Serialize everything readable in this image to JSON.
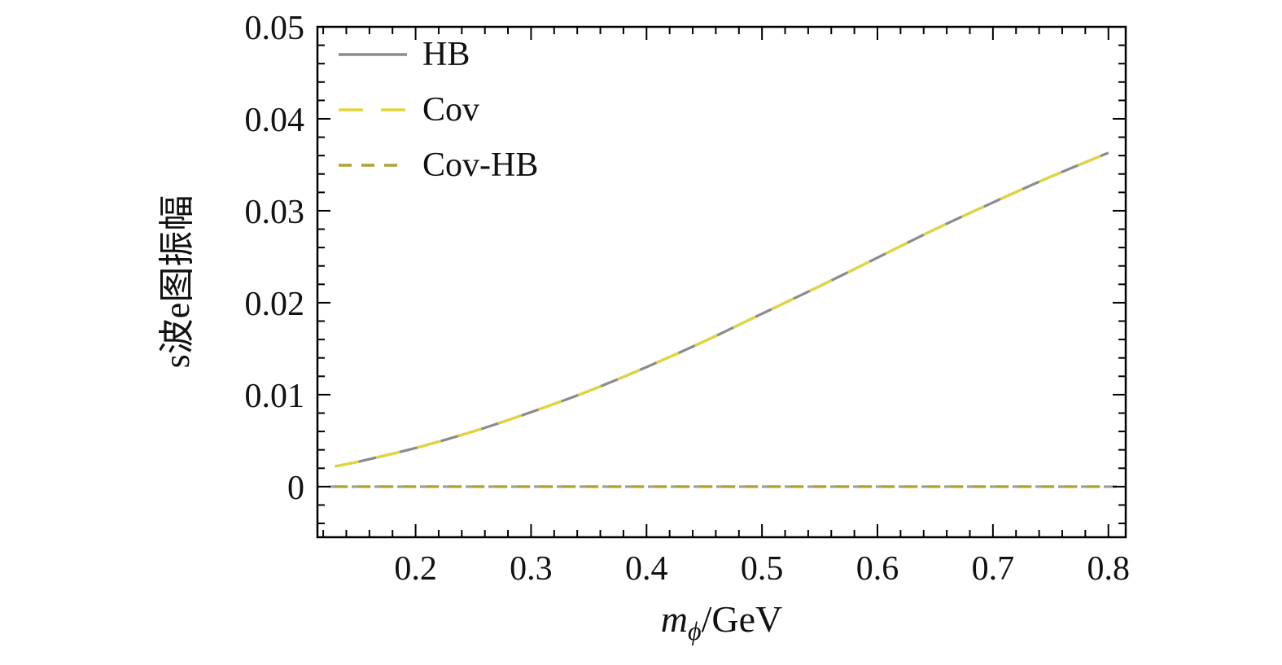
{
  "figure": {
    "background": "#ffffff",
    "frame_color": "#000000"
  },
  "labels": {
    "xlabel_var": "m",
    "xlabel_sub": "ϕ",
    "xlabel_unit": "/GeV",
    "ylabel": "s波e图振幅"
  },
  "legend": {
    "position": "top-left-inside",
    "items": [
      "HB",
      "Cov",
      "Cov-HB"
    ]
  },
  "chart_data": {
    "type": "line",
    "title": "",
    "xlabel": "m_ϕ/GeV",
    "ylabel": "s波e图振幅",
    "xlim": [
      0.115,
      0.815
    ],
    "ylim": [
      -0.0055,
      0.05
    ],
    "xticks": [
      0.2,
      0.3,
      0.4,
      0.5,
      0.6,
      0.7,
      0.8
    ],
    "xtick_labels": [
      "0.2",
      "0.3",
      "0.4",
      "0.5",
      "0.6",
      "0.7",
      "0.8"
    ],
    "yticks": [
      0,
      0.01,
      0.02,
      0.03,
      0.04,
      0.05
    ],
    "ytick_labels": [
      "0",
      "0.01",
      "0.02",
      "0.03",
      "0.04",
      "0.05"
    ],
    "x_minor_step": 0.02,
    "y_minor_step": 0.002,
    "grid": false,
    "legend_position": "top-left-inside",
    "x": [
      0.13,
      0.15,
      0.2,
      0.25,
      0.3,
      0.35,
      0.4,
      0.45,
      0.5,
      0.55,
      0.6,
      0.65,
      0.7,
      0.75,
      0.8
    ],
    "series": [
      {
        "name": "HB",
        "color": "#8b8b90",
        "dash": "solid",
        "values": [
          0.0022,
          0.0027,
          0.0042,
          0.006,
          0.0081,
          0.0104,
          0.013,
          0.0158,
          0.0188,
          0.0218,
          0.0249,
          0.028,
          0.0309,
          0.0337,
          0.0363
        ]
      },
      {
        "name": "Cov",
        "color": "#e0d63a",
        "dash": "30 22",
        "values": [
          0.0022,
          0.0027,
          0.0042,
          0.006,
          0.0081,
          0.0104,
          0.013,
          0.0158,
          0.0188,
          0.0218,
          0.0249,
          0.028,
          0.0309,
          0.0337,
          0.0363
        ]
      },
      {
        "name": "Cov-HB",
        "color": "#b0a22e",
        "dash": "16 12",
        "values": [
          0,
          0,
          0,
          0,
          0,
          0,
          0,
          0,
          0,
          0,
          0,
          0,
          0,
          0,
          0
        ]
      }
    ],
    "zero_line": {
      "color": "#9b9b9b",
      "dash": "16 12",
      "offset": 14
    }
  }
}
